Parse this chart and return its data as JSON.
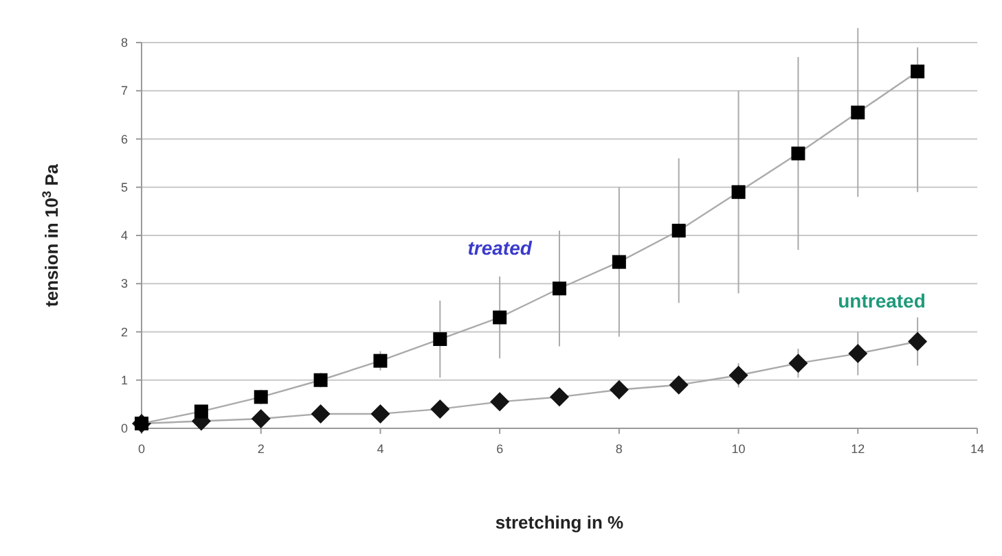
{
  "chart_data": {
    "type": "line",
    "xlabel": "stretching in %",
    "ylabel": "tension in 10$^{3}$ Pa",
    "x": [
      0,
      1,
      2,
      3,
      4,
      5,
      6,
      7,
      8,
      9,
      10,
      11,
      12,
      13
    ],
    "xlim": [
      0,
      14
    ],
    "xticks": [
      0,
      2,
      4,
      6,
      8,
      10,
      12,
      14
    ],
    "ylim": [
      0,
      8
    ],
    "yticks": [
      0,
      1,
      2,
      3,
      4,
      5,
      6,
      7,
      8
    ],
    "grid": "y",
    "series": [
      {
        "name": "treated",
        "color": "#000000",
        "marker": "square",
        "values": [
          0.1,
          0.35,
          0.65,
          1.0,
          1.4,
          1.85,
          2.3,
          2.9,
          3.45,
          4.1,
          4.9,
          5.7,
          6.55,
          7.4
        ],
        "errors": [
          null,
          0.1,
          0.15,
          0.15,
          0.2,
          0.8,
          0.85,
          1.2,
          1.55,
          1.5,
          2.1,
          2.0,
          1.75,
          [
            4.9,
            7.9
          ]
        ]
      },
      {
        "name": "untreated",
        "color": "#141414",
        "marker": "diamond",
        "values": [
          0.1,
          0.15,
          0.2,
          0.3,
          0.3,
          0.4,
          0.55,
          0.65,
          0.8,
          0.9,
          1.1,
          1.35,
          1.55,
          1.8
        ],
        "errors": [
          null,
          0.05,
          0.05,
          0.05,
          0.1,
          0.1,
          0.15,
          0.15,
          0.2,
          0.15,
          0.25,
          0.3,
          0.45,
          0.5
        ]
      }
    ]
  }
}
